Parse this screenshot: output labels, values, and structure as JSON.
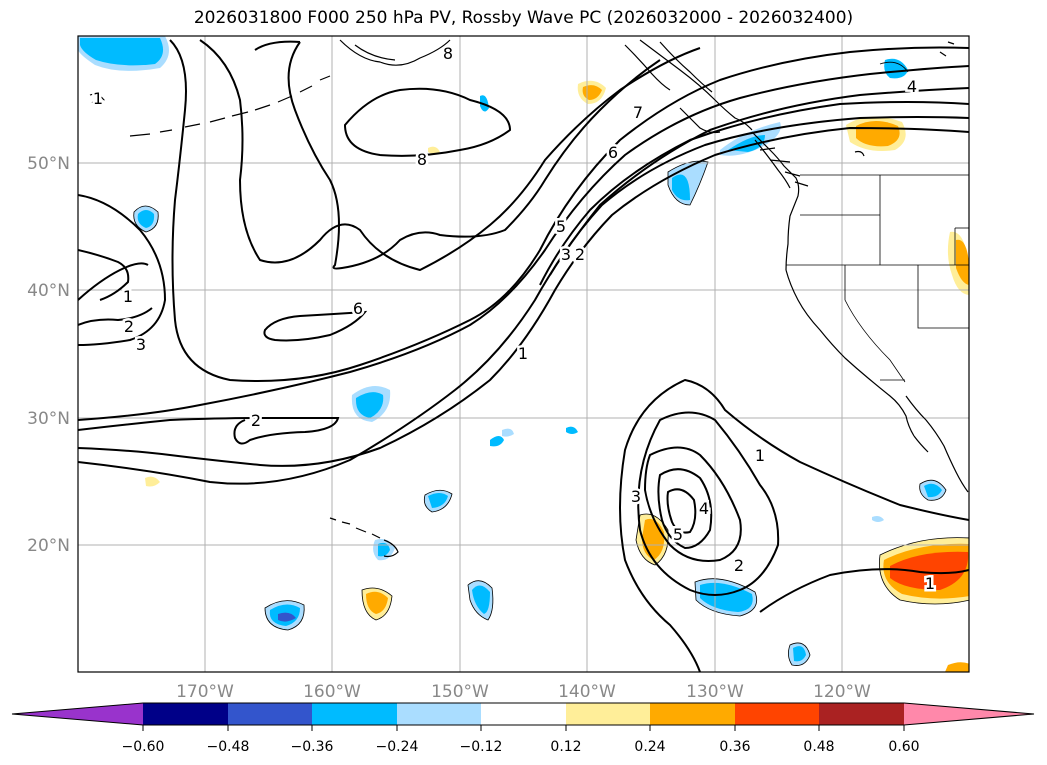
{
  "title": "2026031800 F000 250 hPa PV, Rossby Wave PC (2026032000 - 2026032400)",
  "lon_labels": [
    "170°W",
    "160°W",
    "150°W",
    "140°W",
    "130°W",
    "120°W"
  ],
  "lat_labels": [
    "50°N",
    "40°N",
    "30°N",
    "20°N"
  ],
  "colorbar": {
    "ticks": [
      "−0.60",
      "−0.48",
      "−0.36",
      "−0.24",
      "−0.12",
      "0.12",
      "0.24",
      "0.36",
      "0.48",
      "0.60"
    ],
    "colors": [
      "#9933cc",
      "#000088",
      "#3355cc",
      "#00bbff",
      "#aaddff",
      "#ffffff",
      "#ffee99",
      "#ffaa00",
      "#ff4400",
      "#aa2222",
      "#ff88aa"
    ]
  },
  "contour_labels": [
    "8",
    "8",
    "7",
    "6",
    "5",
    "3",
    "2",
    "4",
    "1",
    "2",
    "3",
    "1",
    "6",
    "1",
    "2",
    "1",
    "3",
    "4",
    "5",
    "2",
    "1"
  ],
  "colors": {
    "negative_fill": "#00bbff",
    "negative_light": "#aaddff",
    "positive_fill": "#ffaa00",
    "positive_light": "#ffee99",
    "positive_strong": "#ff4400",
    "grid": "#b0b0b0",
    "tick_label": "#888888"
  }
}
